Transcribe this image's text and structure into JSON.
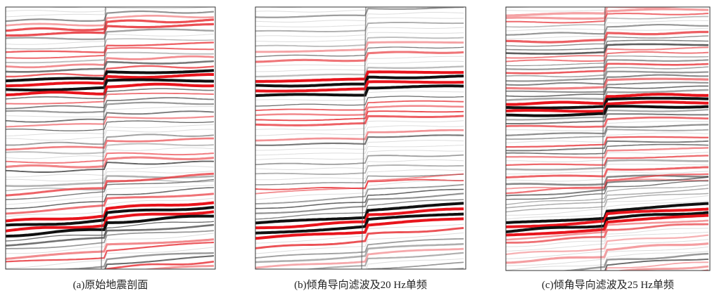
{
  "figure": {
    "panels": [
      {
        "caption": "(a)原始地震剖面"
      },
      {
        "caption": "(b)倾角导向滤波及20 Hz单频"
      },
      {
        "caption": "(c)倾角导向滤波及25 Hz单频"
      }
    ]
  }
}
